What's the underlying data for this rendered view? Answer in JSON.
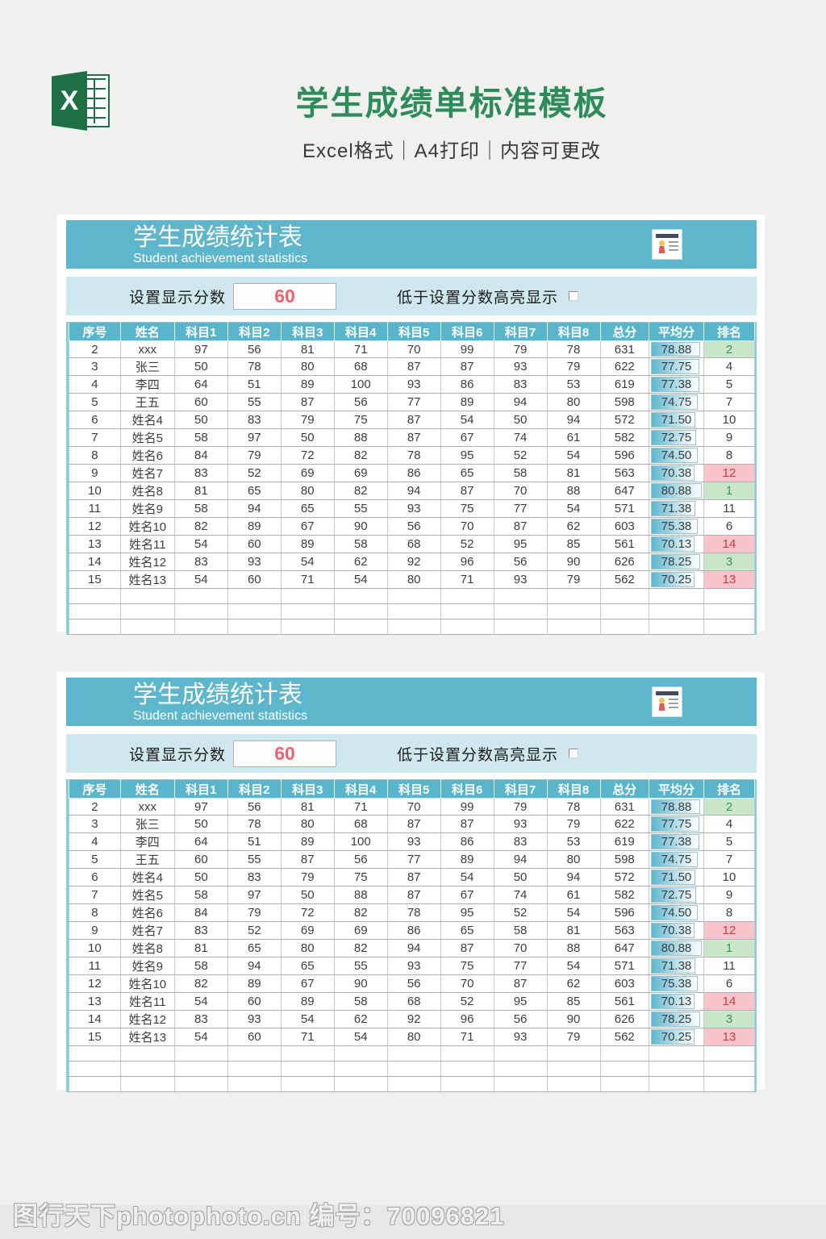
{
  "page": {
    "title": "学生成绩单标准模板",
    "subtitle": "Excel格式｜A4打印｜内容可更改"
  },
  "logo": {
    "letter": "X"
  },
  "card": {
    "banner_title": "学生成绩统计表",
    "banner_subtitle": "Student achievement statistics",
    "icon": "id-card-icon",
    "settings": {
      "score_label": "设置显示分数",
      "score_value": "60",
      "highlight_label": "低于设置分数高亮显示",
      "checkbox_checked": false
    },
    "table": {
      "headers": [
        "序号",
        "姓名",
        "科目1",
        "科目2",
        "科目3",
        "科目4",
        "科目5",
        "科目6",
        "科目7",
        "科目8",
        "总分",
        "平均分",
        "排名"
      ],
      "col_widths_pct": [
        7.5,
        7.9,
        7.76,
        7.76,
        7.76,
        7.76,
        7.76,
        7.76,
        7.76,
        7.76,
        7.12,
        8.0,
        7.4
      ],
      "rows": [
        [
          2,
          "xxx",
          97,
          56,
          81,
          71,
          70,
          99,
          79,
          78,
          631,
          "78.88",
          2
        ],
        [
          3,
          "张三",
          50,
          78,
          80,
          68,
          87,
          87,
          93,
          79,
          622,
          "77.75",
          4
        ],
        [
          4,
          "李四",
          64,
          51,
          89,
          100,
          93,
          86,
          83,
          53,
          619,
          "77.38",
          5
        ],
        [
          5,
          "王五",
          60,
          55,
          87,
          56,
          77,
          89,
          94,
          80,
          598,
          "74.75",
          7
        ],
        [
          6,
          "姓名4",
          50,
          83,
          79,
          75,
          87,
          54,
          50,
          94,
          572,
          "71.50",
          10
        ],
        [
          7,
          "姓名5",
          58,
          97,
          50,
          88,
          87,
          67,
          74,
          61,
          582,
          "72.75",
          9
        ],
        [
          8,
          "姓名6",
          84,
          79,
          72,
          82,
          78,
          95,
          52,
          54,
          596,
          "74.50",
          8
        ],
        [
          9,
          "姓名7",
          83,
          52,
          69,
          69,
          86,
          65,
          58,
          81,
          563,
          "70.38",
          12
        ],
        [
          10,
          "姓名8",
          81,
          65,
          80,
          82,
          94,
          87,
          70,
          88,
          647,
          "80.88",
          1
        ],
        [
          11,
          "姓名9",
          58,
          94,
          65,
          55,
          93,
          75,
          77,
          54,
          571,
          "71.38",
          11
        ],
        [
          12,
          "姓名10",
          82,
          89,
          67,
          90,
          56,
          70,
          87,
          62,
          603,
          "75.38",
          6
        ],
        [
          13,
          "姓名11",
          54,
          60,
          89,
          58,
          68,
          52,
          95,
          85,
          561,
          "70.13",
          14
        ],
        [
          14,
          "姓名12",
          83,
          93,
          54,
          62,
          92,
          96,
          56,
          90,
          626,
          "78.25",
          3
        ],
        [
          15,
          "姓名13",
          54,
          60,
          71,
          54,
          80,
          71,
          93,
          79,
          562,
          "70.25",
          13
        ]
      ],
      "empty_row_count": 3,
      "avg_bar_max": 81,
      "rank_green_max": 3,
      "rank_red_min": 12
    }
  },
  "footer": {
    "watermark": "图行天下photophoto.cn 编号：70096821"
  },
  "colors": {
    "background": "#f0f0ee",
    "title_green": "#2d8c5a",
    "excel_green": "#1d7044",
    "banner_teal": "#5db6cb",
    "settings_band": "#cfe7ef",
    "header_teal": "#58b5cb",
    "score_red": "#f0616e",
    "rank_good_bg": "#c9e8cb",
    "rank_good_text": "#3f9145",
    "rank_bad_bg": "#f8c3ca",
    "rank_bad_text": "#cc3b3b",
    "table_side_border": "#7ed0e0",
    "avgbar_teal": "#5eb6ce"
  }
}
